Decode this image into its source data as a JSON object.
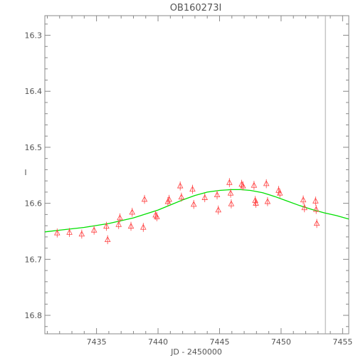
{
  "chart_data": {
    "type": "scatter",
    "title": "OB160273I",
    "xlabel": "JD - 2450000",
    "ylabel": "I",
    "xlim": [
      7430.8,
      7455.5
    ],
    "ylim": [
      16.265,
      16.833
    ],
    "y_inverted": true,
    "x_ticks": [
      7435,
      7440,
      7445,
      7450,
      7455
    ],
    "x_tick_labels": [
      "7435",
      "7440",
      "7445",
      "7450",
      "7455"
    ],
    "y_ticks": [
      16.3,
      16.4,
      16.5,
      16.6,
      16.7,
      16.8
    ],
    "y_tick_labels": [
      "16.3",
      "16.4",
      "16.5",
      "16.6",
      "16.7",
      "16.8"
    ],
    "vertical_line_x": 7453.6,
    "colors": {
      "points": "#ff4040",
      "model": "#00e000",
      "axes": "#888888",
      "text": "#555555",
      "marker_line": "#aaaaaa"
    },
    "series": [
      {
        "marker": "triangle",
        "points": [
          {
            "x": 7431.8,
            "y": 16.653,
            "err": 0.008
          },
          {
            "x": 7432.8,
            "y": 16.652,
            "err": 0.008
          },
          {
            "x": 7433.8,
            "y": 16.655,
            "err": 0.008
          },
          {
            "x": 7434.8,
            "y": 16.648,
            "err": 0.008
          },
          {
            "x": 7435.8,
            "y": 16.641,
            "err": 0.008
          },
          {
            "x": 7435.9,
            "y": 16.665,
            "err": 0.008
          },
          {
            "x": 7436.8,
            "y": 16.638,
            "err": 0.008
          },
          {
            "x": 7436.9,
            "y": 16.626,
            "err": 0.008
          },
          {
            "x": 7437.8,
            "y": 16.641,
            "err": 0.008
          },
          {
            "x": 7437.9,
            "y": 16.616,
            "err": 0.008
          },
          {
            "x": 7438.8,
            "y": 16.643,
            "err": 0.008
          },
          {
            "x": 7438.9,
            "y": 16.593,
            "err": 0.008
          },
          {
            "x": 7439.8,
            "y": 16.621,
            "err": 0.008
          },
          {
            "x": 7439.9,
            "y": 16.624,
            "err": 0.008
          },
          {
            "x": 7440.8,
            "y": 16.597,
            "err": 0.008
          },
          {
            "x": 7440.9,
            "y": 16.593,
            "err": 0.008
          },
          {
            "x": 7441.8,
            "y": 16.569,
            "err": 0.008
          },
          {
            "x": 7441.9,
            "y": 16.589,
            "err": 0.008
          },
          {
            "x": 7442.8,
            "y": 16.575,
            "err": 0.008
          },
          {
            "x": 7442.9,
            "y": 16.602,
            "err": 0.008
          },
          {
            "x": 7443.8,
            "y": 16.59,
            "err": 0.008
          },
          {
            "x": 7444.8,
            "y": 16.585,
            "err": 0.008
          },
          {
            "x": 7444.9,
            "y": 16.612,
            "err": 0.008
          },
          {
            "x": 7445.8,
            "y": 16.563,
            "err": 0.008
          },
          {
            "x": 7445.9,
            "y": 16.582,
            "err": 0.008
          },
          {
            "x": 7445.95,
            "y": 16.601,
            "err": 0.008
          },
          {
            "x": 7446.8,
            "y": 16.566,
            "err": 0.008
          },
          {
            "x": 7446.9,
            "y": 16.569,
            "err": 0.008
          },
          {
            "x": 7447.8,
            "y": 16.568,
            "err": 0.008
          },
          {
            "x": 7447.9,
            "y": 16.595,
            "err": 0.008
          },
          {
            "x": 7447.95,
            "y": 16.6,
            "err": 0.008
          },
          {
            "x": 7448.8,
            "y": 16.565,
            "err": 0.008
          },
          {
            "x": 7448.9,
            "y": 16.597,
            "err": 0.008
          },
          {
            "x": 7449.8,
            "y": 16.577,
            "err": 0.008
          },
          {
            "x": 7449.9,
            "y": 16.582,
            "err": 0.008
          },
          {
            "x": 7451.8,
            "y": 16.594,
            "err": 0.008
          },
          {
            "x": 7451.9,
            "y": 16.608,
            "err": 0.008
          },
          {
            "x": 7452.8,
            "y": 16.596,
            "err": 0.008
          },
          {
            "x": 7452.85,
            "y": 16.611,
            "err": 0.008
          },
          {
            "x": 7452.9,
            "y": 16.636,
            "err": 0.008
          }
        ]
      }
    ],
    "model": {
      "name": "",
      "x": [
        7430.8,
        7432,
        7434,
        7436,
        7438,
        7440,
        7441,
        7442,
        7443,
        7444,
        7445,
        7446,
        7446.7,
        7447.5,
        7448.5,
        7449.5,
        7450.5,
        7451.5,
        7452.5,
        7453.5,
        7454.5,
        7455.5
      ],
      "y": [
        16.651,
        16.648,
        16.643,
        16.636,
        16.626,
        16.612,
        16.603,
        16.594,
        16.586,
        16.58,
        16.577,
        16.5755,
        16.5755,
        16.577,
        16.581,
        16.588,
        16.596,
        16.604,
        16.611,
        16.617,
        16.622,
        16.628
      ]
    }
  }
}
